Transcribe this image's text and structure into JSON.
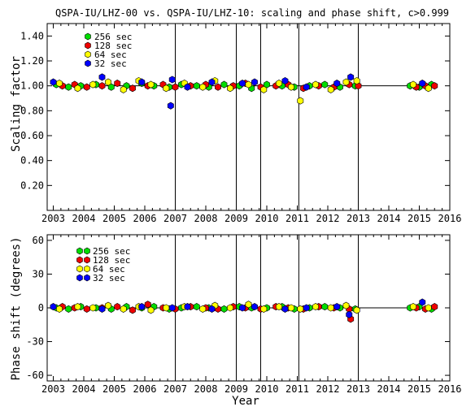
{
  "chart_data": [
    {
      "type": "scatter",
      "title": "QSPA-IU/LHZ-00 vs. QSPA-IU/LHZ-10: scaling and phase shift, c>0.999",
      "xlabel": "",
      "ylabel": "Scaling factor",
      "xlim": [
        2002.8,
        2016.0
      ],
      "ylim": [
        0.0,
        1.5
      ],
      "x_ticks": [
        2003,
        2004,
        2005,
        2006,
        2007,
        2008,
        2009,
        2010,
        2011,
        2012,
        2013,
        2014,
        2015,
        2016
      ],
      "x_tick_labels": [
        "2003",
        "2004",
        "2005",
        "2006",
        "2007",
        "2008",
        "2009",
        "2010",
        "2011",
        "2012",
        "2013",
        "2014",
        "2015",
        "2016"
      ],
      "y_ticks": [
        0.2,
        0.4,
        0.6,
        0.8,
        1.0,
        1.2,
        1.4
      ],
      "y_tick_labels": [
        "0.20",
        "0.40",
        "0.60",
        "0.80",
        "1.00",
        "1.20",
        "1.40"
      ],
      "reference_line": 1.0,
      "event_lines": [
        2007.0,
        2009.0,
        2009.8,
        2011.05,
        2013.0
      ],
      "data_gap": [
        2013.0,
        2014.6
      ],
      "legend": {
        "placement": "top-left",
        "entries": [
          {
            "label": "256 sec",
            "color": "#00dd00"
          },
          {
            "label": "128 sec",
            "color": "#ee0000"
          },
          {
            "label": " 64 sec",
            "color": "#ffff00"
          },
          {
            "label": " 32 sec",
            "color": "#0000ff"
          }
        ]
      },
      "series": [
        {
          "name": "256 sec",
          "color": "#00dd00",
          "x": [
            2003.1,
            2003.5,
            2003.9,
            2004.4,
            2004.9,
            2005.4,
            2005.9,
            2006.3,
            2006.8,
            2007.2,
            2007.7,
            2008.1,
            2008.6,
            2009.1,
            2009.5,
            2010.0,
            2010.5,
            2010.9,
            2011.4,
            2011.9,
            2012.4,
            2012.9,
            2014.7,
            2015.0,
            2015.4
          ],
          "y": [
            1.01,
            0.99,
            1.0,
            1.01,
            0.99,
            1.0,
            1.02,
            1.0,
            0.99,
            1.01,
            1.0,
            0.99,
            1.01,
            1.0,
            0.98,
            1.01,
            1.0,
            0.99,
            1.0,
            1.01,
            0.99,
            1.0,
            1.0,
            0.99,
            1.01
          ]
        },
        {
          "name": "128 sec",
          "color": "#ee0000",
          "x": [
            2003.3,
            2003.7,
            2004.1,
            2004.6,
            2005.1,
            2005.6,
            2006.1,
            2006.6,
            2007.0,
            2007.5,
            2008.0,
            2008.4,
            2008.9,
            2009.3,
            2009.8,
            2010.3,
            2010.7,
            2011.2,
            2011.7,
            2012.2,
            2012.7,
            2013.0,
            2014.9,
            2015.2,
            2015.5
          ],
          "y": [
            1.0,
            1.01,
            0.99,
            1.0,
            1.02,
            0.98,
            1.0,
            1.01,
            0.99,
            1.0,
            1.01,
            0.99,
            1.0,
            1.02,
            0.99,
            1.0,
            1.01,
            0.98,
            1.0,
            0.99,
            1.01,
            1.0,
            0.99,
            1.0,
            1.0
          ]
        },
        {
          "name": "64 sec",
          "color": "#ffff00",
          "x": [
            2003.2,
            2003.8,
            2004.3,
            2004.8,
            2005.3,
            2005.8,
            2006.2,
            2006.7,
            2007.3,
            2007.9,
            2008.3,
            2008.8,
            2009.4,
            2009.9,
            2010.4,
            2010.8,
            2011.1,
            2011.6,
            2012.1,
            2012.6,
            2012.95,
            2014.8,
            2015.3
          ],
          "y": [
            1.02,
            0.98,
            1.01,
            1.03,
            0.97,
            1.04,
            1.01,
            0.98,
            1.02,
            0.99,
            1.04,
            0.98,
            1.01,
            0.97,
            1.02,
            0.99,
            0.88,
            1.01,
            0.97,
            1.03,
            1.04,
            1.01,
            0.98
          ]
        },
        {
          "name": "32 sec",
          "color": "#0000ff",
          "x": [
            2003.0,
            2004.6,
            2005.9,
            2006.85,
            2006.9,
            2007.4,
            2008.2,
            2009.2,
            2009.6,
            2010.6,
            2011.3,
            2012.3,
            2012.75,
            2015.1
          ],
          "y": [
            1.03,
            1.07,
            1.03,
            0.84,
            1.05,
            0.99,
            1.03,
            1.02,
            1.03,
            1.04,
            0.99,
            1.02,
            1.07,
            1.02
          ]
        }
      ]
    },
    {
      "type": "scatter",
      "title": "",
      "xlabel": "Year",
      "ylabel": "Phase shift (degrees)",
      "xlim": [
        2002.8,
        2016.0
      ],
      "ylim": [
        -65,
        65
      ],
      "x_ticks": [
        2003,
        2004,
        2005,
        2006,
        2007,
        2008,
        2009,
        2010,
        2011,
        2012,
        2013,
        2014,
        2015,
        2016
      ],
      "x_tick_labels": [
        "2003",
        "2004",
        "2005",
        "2006",
        "2007",
        "2008",
        "2009",
        "2010",
        "2011",
        "2012",
        "2013",
        "2014",
        "2015",
        "2016"
      ],
      "y_ticks": [
        -60,
        -30,
        0,
        30,
        60
      ],
      "y_tick_labels": [
        "-60",
        "-30",
        "0",
        "30",
        "60"
      ],
      "reference_line": 0,
      "event_lines": [
        2007.0,
        2009.0,
        2009.8,
        2011.05,
        2013.0
      ],
      "data_gap": [
        2013.0,
        2014.6
      ],
      "legend": {
        "placement": "top-left",
        "entries": [
          {
            "label": "256 sec",
            "color": "#00dd00"
          },
          {
            "label": "128 sec",
            "color": "#ee0000"
          },
          {
            "label": " 64 sec",
            "color": "#ffff00"
          },
          {
            "label": " 32 sec",
            "color": "#0000ff"
          }
        ]
      },
      "series": [
        {
          "name": "256 sec",
          "color": "#00dd00",
          "x": [
            2003.1,
            2003.5,
            2003.9,
            2004.4,
            2004.9,
            2005.4,
            2005.9,
            2006.3,
            2006.8,
            2007.2,
            2007.7,
            2008.1,
            2008.6,
            2009.1,
            2009.5,
            2010.0,
            2010.5,
            2010.9,
            2011.4,
            2011.9,
            2012.4,
            2012.9,
            2014.7,
            2015.0,
            2015.4
          ],
          "y": [
            0,
            -1,
            1,
            0,
            -1,
            1,
            0,
            1,
            -1,
            0,
            1,
            0,
            -1,
            1,
            0,
            0,
            1,
            -1,
            0,
            1,
            0,
            -1,
            0,
            1,
            -1
          ]
        },
        {
          "name": "128 sec",
          "color": "#ee0000",
          "x": [
            2003.3,
            2003.7,
            2004.1,
            2004.6,
            2005.1,
            2005.6,
            2006.1,
            2006.6,
            2007.0,
            2007.5,
            2008.0,
            2008.4,
            2008.9,
            2009.3,
            2009.8,
            2010.3,
            2010.7,
            2011.2,
            2011.7,
            2012.2,
            2012.7,
            2012.75,
            2014.9,
            2015.2,
            2015.5
          ],
          "y": [
            1,
            0,
            -1,
            0,
            1,
            -2,
            3,
            0,
            -1,
            1,
            0,
            -1,
            1,
            0,
            -1,
            1,
            0,
            -1,
            1,
            0,
            -1,
            -10,
            0,
            -1,
            1
          ]
        },
        {
          "name": "64 sec",
          "color": "#ffff00",
          "x": [
            2003.2,
            2003.8,
            2004.3,
            2004.8,
            2005.3,
            2005.8,
            2006.2,
            2006.7,
            2007.3,
            2007.9,
            2008.3,
            2008.8,
            2009.4,
            2009.9,
            2010.4,
            2010.8,
            2011.1,
            2011.6,
            2012.1,
            2012.6,
            2012.95,
            2014.8,
            2015.3
          ],
          "y": [
            -1,
            1,
            0,
            2,
            -1,
            1,
            -2,
            0,
            1,
            -1,
            2,
            0,
            3,
            -1,
            1,
            0,
            -1,
            1,
            0,
            2,
            -2,
            1,
            0
          ]
        },
        {
          "name": "32 sec",
          "color": "#0000ff",
          "x": [
            2003.0,
            2004.6,
            2005.9,
            2006.9,
            2007.4,
            2008.2,
            2009.2,
            2009.6,
            2010.6,
            2011.3,
            2012.3,
            2012.7,
            2015.1
          ],
          "y": [
            1,
            -1,
            1,
            0,
            1,
            -1,
            0,
            1,
            -1,
            0,
            1,
            -6,
            5
          ]
        }
      ]
    }
  ]
}
